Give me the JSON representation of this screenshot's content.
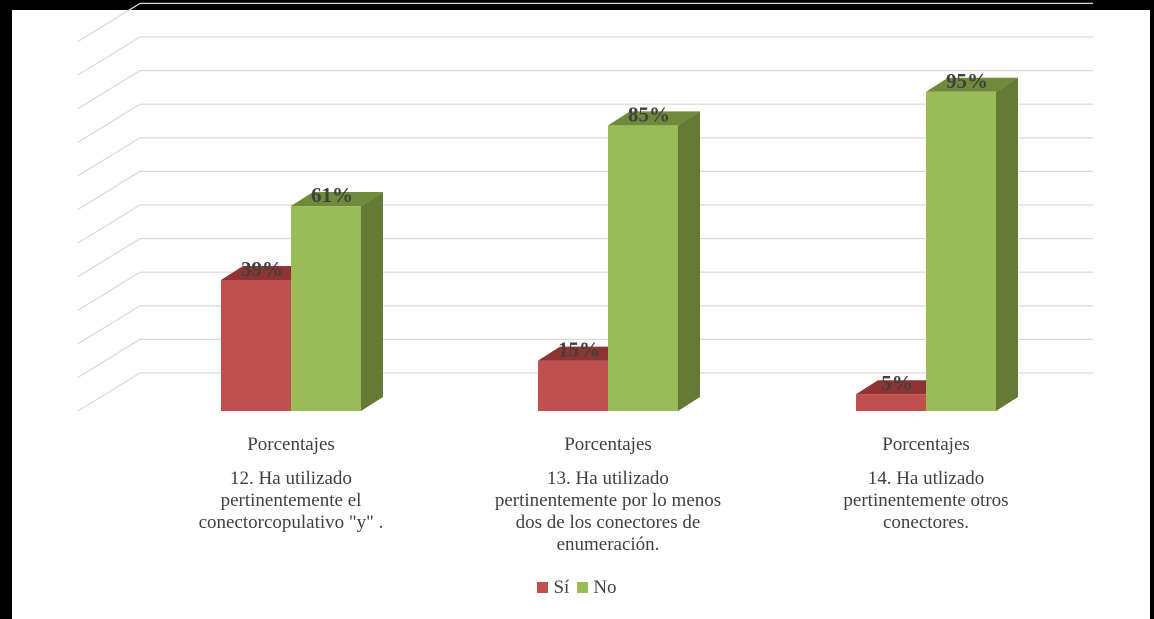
{
  "chart_data": {
    "type": "bar",
    "style": "3d-clustered-column",
    "categories": [
      {
        "group": "Porcentajes",
        "label": "12. Ha utilizado\npertinentemente el\nconectorcopulativo \"y\" ."
      },
      {
        "group": "Porcentajes",
        "label": "13. Ha utilizado\npertinentemente por lo menos\ndos de los conectores de\nenumeración."
      },
      {
        "group": "Porcentajes",
        "label": "14. Ha utlizado\npertinentemente otros\nconectores."
      }
    ],
    "series": [
      {
        "name": "Sí",
        "values": [
          39,
          15,
          5
        ],
        "labels": [
          "39%",
          "15%",
          "5%"
        ],
        "color": "#C0504D",
        "top_color": "#8E3432",
        "side_color": "#8E3432"
      },
      {
        "name": "No",
        "values": [
          61,
          85,
          95
        ],
        "labels": [
          "61%",
          "85%",
          "95%"
        ],
        "color": "#9BBB59",
        "top_color": "#6E8A3A",
        "side_color": "#647A35"
      }
    ],
    "ylim": [
      0,
      110
    ],
    "grid": true,
    "legend": "bottom-center",
    "data_labels": true
  }
}
